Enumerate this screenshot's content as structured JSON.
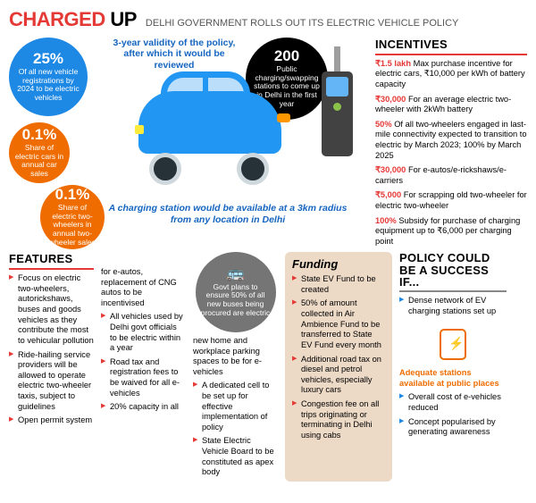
{
  "header": {
    "charged": "CHARGED",
    "up": "UP",
    "sub": "DELHI GOVERNMENT ROLLS OUT ITS ELECTRIC VEHICLE POLICY"
  },
  "callouts": {
    "validity": "3-year validity of the policy, after which it would be reviewed",
    "radius": "A charging station would be available at a 3km radius from any location in Delhi"
  },
  "bubbles": {
    "b1": {
      "big": "25%",
      "txt": "Of all new vehicle registrations by 2024 to be electric vehicles"
    },
    "b2": {
      "big": "0.1%",
      "txt": "Share of electric cars in annual car sales"
    },
    "b3": {
      "big": "0.1%",
      "txt": "Share of electric two-wheelers in annual two-wheeler sales"
    },
    "b4": {
      "big": "200",
      "txt": "Public charging/swapping stations to come up in Delhi in the first year"
    },
    "bus": {
      "txt": "Govt plans to ensure 50% of all new buses being procured are electric"
    }
  },
  "incentives": {
    "title": "INCENTIVES",
    "items": [
      {
        "lead": "₹1.5 lakh",
        "txt": " Max purchase incentive for electric cars, ₹10,000 per kWh of battery capacity"
      },
      {
        "lead": "₹30,000",
        "txt": " For an average electric two-wheeler with 2kWh battery"
      },
      {
        "lead": "50%",
        "txt": " Of all two-wheelers engaged in last-mile connectivity expected to transition to electric by March 2023; 100% by March 2025"
      },
      {
        "lead": "₹30,000",
        "txt": " For e-autos/e-rickshaws/e-carriers"
      },
      {
        "lead": "₹5,000",
        "txt": " For scrapping old two-wheeler for electric two-wheeler"
      },
      {
        "lead": "100%",
        "txt": " Subsidy for purchase of charging equipment up to ₹6,000 per charging point"
      }
    ]
  },
  "features": {
    "title": "FEATURES",
    "col1": [
      "Focus on electric two-wheelers, autorickshaws, buses and goods vehicles as they contribute the most to vehicular pollution",
      "Ride-hailing service providers will be allowed to operate electric two-wheeler taxis, subject to guidelines",
      "Open permit system"
    ],
    "col2pre": "for e-autos, replacement of CNG autos to be incentivised",
    "col2": [
      "All vehicles used by Delhi govt officials to be electric within a year",
      "Road tax and registration fees to be waived for all e-vehicles",
      "20% capacity in all"
    ],
    "col3pre": "new home and workplace parking spaces to be for e-vehicles",
    "col3": [
      "A dedicated cell to be set up for effective implementation of policy",
      "State Electric Vehicle Board to be constituted as apex body"
    ]
  },
  "funding": {
    "title": "Funding",
    "items": [
      "State EV Fund to be created",
      "50% of amount collected in Air Ambience Fund to be transferred to State EV Fund every month",
      "Additional road tax on diesel and petrol vehicles, especially luxury cars",
      "Congestion fee on all trips originating or terminating in Delhi using cabs"
    ]
  },
  "policy": {
    "title": "POLICY COULD BE A SUCCESS IF...",
    "items": [
      "Dense network of EV charging stations set up",
      "Adequate stations available at public places",
      "Overall cost of e-vehicles reduced",
      "Concept popularised by generating awareness"
    ]
  }
}
